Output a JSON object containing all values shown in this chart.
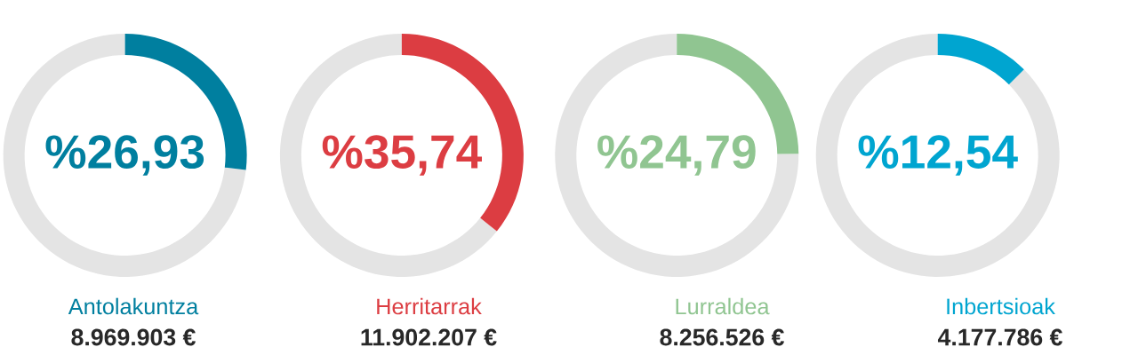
{
  "chart_data": [
    {
      "type": "donut",
      "title": "Antolakuntza",
      "categories": [
        null,
        null
      ],
      "values": [
        26.93,
        73.07
      ],
      "colors": [
        "#007f9f",
        "#e4e4e4"
      ],
      "annotations": [
        "%26,93",
        "8.969.903 €"
      ]
    },
    {
      "type": "donut",
      "title": "Herritarrak",
      "categories": [
        null,
        null
      ],
      "values": [
        35.74,
        64.26
      ],
      "colors": [
        "#dc3d42",
        "#e4e4e4"
      ],
      "annotations": [
        "%35,74",
        "11.902.207 €"
      ]
    },
    {
      "type": "donut",
      "title": "Lurraldea",
      "categories": [
        null,
        null
      ],
      "values": [
        24.79,
        75.21
      ],
      "colors": [
        "#90c591",
        "#e4e4e4"
      ],
      "annotations": [
        "%24,79",
        "8.256.526 €"
      ]
    },
    {
      "type": "donut",
      "title": "Inbertsioak",
      "categories": [
        null,
        null
      ],
      "values": [
        12.54,
        87.46
      ],
      "colors": [
        "#00a5d0",
        "#e4e4e4"
      ],
      "annotations": [
        "%12,54",
        "4.177.786 €"
      ]
    }
  ]
}
